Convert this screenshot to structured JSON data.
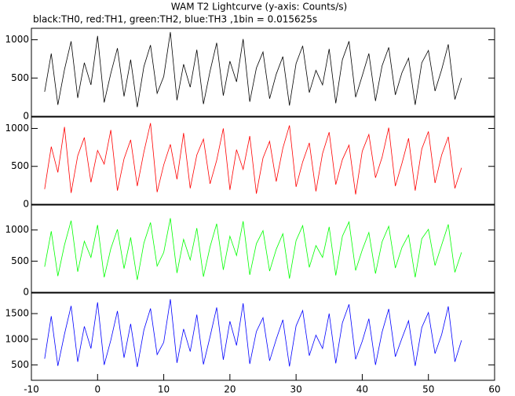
{
  "chart_data": [
    {
      "type": "line",
      "title": "WAM T2 Lightcurve (y-axis: Counts/s)",
      "subtitle": "black:TH0, red:TH1, green:TH2, blue:TH3 ,1bin = 0.015625s",
      "x": [
        -8,
        -7,
        -6,
        -5,
        -4,
        -3,
        -2,
        -1,
        0,
        1,
        2,
        3,
        4,
        5,
        6,
        7,
        8,
        9,
        10,
        11,
        12,
        13,
        14,
        15,
        16,
        17,
        18,
        19,
        20,
        21,
        22,
        23,
        24,
        25,
        26,
        27,
        28,
        29,
        30,
        31,
        32,
        33,
        34,
        35,
        36,
        37,
        38,
        39,
        40,
        41,
        42,
        43,
        44,
        45,
        46,
        47,
        48,
        49,
        50,
        51,
        52,
        53,
        54,
        55
      ],
      "series": [
        {
          "color": "#000000",
          "values": [
            320,
            820,
            150,
            610,
            980,
            240,
            700,
            410,
            1050,
            180,
            560,
            890,
            260,
            740,
            120,
            650,
            930,
            300,
            520,
            1100,
            210,
            680,
            380,
            870,
            160,
            590,
            960,
            270,
            720,
            450,
            1010,
            190,
            630,
            840,
            230,
            550,
            780,
            140,
            690,
            920,
            310,
            600,
            410,
            880,
            170,
            740,
            980,
            250,
            530,
            820,
            200,
            660,
            900,
            280,
            570,
            760,
            150,
            700,
            860,
            330,
            610,
            940,
            220,
            500
          ]
        }
      ],
      "xlim": [
        -10,
        60
      ],
      "ylim": [
        0,
        1150
      ],
      "yticks": [
        0,
        500,
        1000
      ]
    },
    {
      "type": "line",
      "x": [
        -8,
        -7,
        -6,
        -5,
        -4,
        -3,
        -2,
        -1,
        0,
        1,
        2,
        3,
        4,
        5,
        6,
        7,
        8,
        9,
        10,
        11,
        12,
        13,
        14,
        15,
        16,
        17,
        18,
        19,
        20,
        21,
        22,
        23,
        24,
        25,
        26,
        27,
        28,
        29,
        30,
        31,
        32,
        33,
        34,
        35,
        36,
        37,
        38,
        39,
        40,
        41,
        42,
        43,
        44,
        45,
        46,
        47,
        48,
        49,
        50,
        51,
        52,
        53,
        54,
        55
      ],
      "series": [
        {
          "color": "#ff0000",
          "values": [
            200,
            760,
            420,
            1020,
            150,
            640,
            880,
            290,
            710,
            530,
            980,
            180,
            600,
            850,
            240,
            690,
            1070,
            160,
            520,
            790,
            330,
            940,
            210,
            650,
            860,
            270,
            580,
            1000,
            190,
            720,
            460,
            900,
            140,
            610,
            830,
            300,
            740,
            1040,
            230,
            560,
            810,
            170,
            670,
            950,
            260,
            590,
            780,
            130,
            700,
            920,
            350,
            620,
            1010,
            240,
            540,
            870,
            180,
            730,
            960,
            280,
            650,
            890,
            210,
            480
          ]
        }
      ],
      "xlim": [
        -10,
        60
      ],
      "ylim": [
        0,
        1150
      ],
      "yticks": [
        0,
        500,
        1000
      ]
    },
    {
      "type": "line",
      "x": [
        -8,
        -7,
        -6,
        -5,
        -4,
        -3,
        -2,
        -1,
        0,
        1,
        2,
        3,
        4,
        5,
        6,
        7,
        8,
        9,
        10,
        11,
        12,
        13,
        14,
        15,
        16,
        17,
        18,
        19,
        20,
        21,
        22,
        23,
        24,
        25,
        26,
        27,
        28,
        29,
        30,
        31,
        32,
        33,
        34,
        35,
        36,
        37,
        38,
        39,
        40,
        41,
        42,
        43,
        44,
        45,
        46,
        47,
        48,
        49,
        50,
        51,
        52,
        53,
        54,
        55
      ],
      "series": [
        {
          "color": "#00ff00",
          "values": [
            410,
            980,
            260,
            760,
            1150,
            330,
            820,
            560,
            1080,
            240,
            700,
            1010,
            380,
            880,
            200,
            790,
            1120,
            420,
            640,
            1190,
            310,
            850,
            520,
            1030,
            250,
            730,
            1100,
            360,
            900,
            590,
            1140,
            280,
            780,
            990,
            340,
            690,
            940,
            220,
            830,
            1070,
            400,
            750,
            560,
            1050,
            270,
            900,
            1130,
            350,
            680,
            960,
            300,
            810,
            1060,
            390,
            720,
            920,
            240,
            860,
            1010,
            430,
            760,
            1090,
            320,
            640
          ]
        }
      ],
      "xlim": [
        -10,
        60
      ],
      "ylim": [
        0,
        1400
      ],
      "yticks": [
        0,
        500,
        1000
      ]
    },
    {
      "type": "line",
      "x": [
        -8,
        -7,
        -6,
        -5,
        -4,
        -3,
        -2,
        -1,
        0,
        1,
        2,
        3,
        4,
        5,
        6,
        7,
        8,
        9,
        10,
        11,
        12,
        13,
        14,
        15,
        16,
        17,
        18,
        19,
        20,
        21,
        22,
        23,
        24,
        25,
        26,
        27,
        28,
        29,
        30,
        31,
        32,
        33,
        34,
        35,
        36,
        37,
        38,
        39,
        40,
        41,
        42,
        43,
        44,
        45,
        46,
        47,
        48,
        49,
        50,
        51,
        52,
        53,
        54,
        55
      ],
      "series": [
        {
          "color": "#0000ff",
          "values": [
            620,
            1450,
            480,
            1100,
            1650,
            560,
            1250,
            820,
            1720,
            500,
            980,
            1550,
            640,
            1300,
            460,
            1180,
            1600,
            700,
            940,
            1780,
            540,
            1200,
            760,
            1480,
            510,
            1050,
            1620,
            600,
            1350,
            880,
            1700,
            520,
            1150,
            1420,
            580,
            1000,
            1380,
            470,
            1260,
            1560,
            680,
            1080,
            820,
            1500,
            530,
            1320,
            1680,
            610,
            960,
            1400,
            500,
            1140,
            1590,
            660,
            1020,
            1360,
            480,
            1230,
            1520,
            720,
            1090,
            1640,
            560,
            980
          ]
        }
      ],
      "xlim": [
        -10,
        60
      ],
      "xticks": [
        -10,
        0,
        10,
        20,
        30,
        40,
        50,
        60
      ],
      "ylim": [
        200,
        1900
      ],
      "yticks": [
        500,
        1000,
        1500
      ]
    }
  ]
}
